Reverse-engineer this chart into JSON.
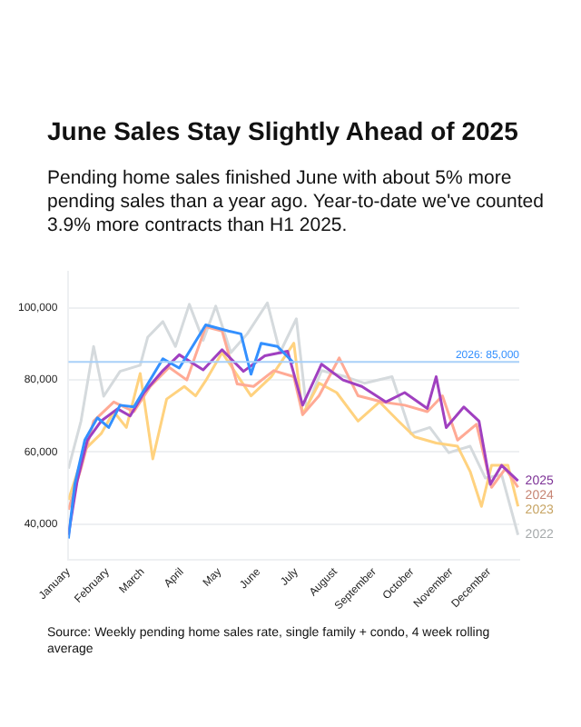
{
  "chart_data": {
    "type": "line",
    "title": "June Sales Stay Slightly Ahead of 2025",
    "subtitle": "Pending home sales finished June with about 5% more pending sales than a year ago. Year-to-date we've counted 3.9% more contracts than H1 2025.",
    "annotations": [
      "Source: Weekly pending home sales rate, single family + condo, 4 week rolling average"
    ],
    "xlim": [
      "--01-01",
      "--12-25"
    ],
    "xticks": [
      {
        "value": "--01-01",
        "label": "January"
      },
      {
        "value": "--02-01",
        "label": "February"
      },
      {
        "value": "--03-01",
        "label": "March"
      },
      {
        "value": "--04-01",
        "label": "April"
      },
      {
        "value": "--05-01",
        "label": "May"
      },
      {
        "value": "--06-01",
        "label": "June"
      },
      {
        "value": "--07-01",
        "label": "July"
      },
      {
        "value": "--08-01",
        "label": "August"
      },
      {
        "value": "--09-01",
        "label": "September"
      },
      {
        "value": "--10-01",
        "label": "October"
      },
      {
        "value": "--11-01",
        "label": "November"
      },
      {
        "value": "--12-01",
        "label": "December"
      }
    ],
    "ylim": [
      30000,
      110000
    ],
    "yticks": [
      {
        "value": 40000,
        "label": "40,000"
      },
      {
        "value": 60000,
        "label": "60,000"
      },
      {
        "value": 80000,
        "label": "80,000"
      },
      {
        "value": 100000,
        "label": "100,000"
      }
    ],
    "grid": "y",
    "line_style": "solid",
    "ref_lines": [
      {
        "axis": "y",
        "value": 85000,
        "label": "2026: 85,000",
        "color": "#a8d0f8",
        "line_style": "solid"
      }
    ],
    "series": [
      {
        "name": "2022",
        "color": "#d5dadd",
        "x": [
          "--01-01",
          "--01-11",
          "--01-21",
          "--01-29",
          "--02-11",
          "--02-27",
          "--03-05",
          "--03-17",
          "--03-27",
          "--04-07",
          "--04-18",
          "--04-28",
          "--05-10",
          "--05-23",
          "--06-08",
          "--06-18",
          "--07-01",
          "--07-09",
          "--07-21",
          "--08-09",
          "--08-24",
          "--09-15",
          "--09-30",
          "--10-15",
          "--10-30",
          "--11-16",
          "--11-28",
          "--12-11",
          "--12-24"
        ],
        "values": [
          55400,
          68600,
          89300,
          75500,
          82400,
          84100,
          91900,
          96200,
          89300,
          101000,
          91000,
          100500,
          87600,
          92800,
          101400,
          87600,
          97000,
          72100,
          82600,
          80900,
          79100,
          80900,
          65100,
          66800,
          59800,
          61600,
          52800,
          53700,
          37000
        ]
      },
      {
        "name": "2023",
        "color": "#ffd27f",
        "x": [
          "--01-01",
          "--01-14",
          "--01-27",
          "--02-06",
          "--02-16",
          "--02-27",
          "--03-09",
          "--03-20",
          "--04-03",
          "--04-12",
          "--04-20",
          "--05-03",
          "--05-26",
          "--06-11",
          "--06-29",
          "--07-06",
          "--07-19",
          "--08-02",
          "--08-19",
          "--09-05",
          "--09-20",
          "--10-03",
          "--10-20",
          "--11-06",
          "--11-16",
          "--11-25",
          "--12-03",
          "--12-16",
          "--12-24"
        ],
        "values": [
          46700,
          60700,
          65100,
          71200,
          66800,
          81800,
          58100,
          74700,
          78200,
          75600,
          79800,
          87600,
          75600,
          80900,
          90200,
          70400,
          79100,
          76500,
          68600,
          73900,
          68600,
          64200,
          62500,
          61600,
          54600,
          44900,
          56300,
          56300,
          44900
        ]
      },
      {
        "name": "2024",
        "color": "#ffaa95",
        "x": [
          "--01-01",
          "--01-11",
          "--01-21",
          "--02-06",
          "--02-22",
          "--03-07",
          "--03-22",
          "--04-05",
          "--04-20",
          "--05-03",
          "--05-15",
          "--05-28",
          "--06-13",
          "--06-29",
          "--07-06",
          "--07-19",
          "--08-04",
          "--08-19",
          "--09-07",
          "--09-25",
          "--10-13",
          "--10-25",
          "--11-06",
          "--11-21",
          "--12-03",
          "--12-14",
          "--12-24"
        ],
        "values": [
          44000,
          55400,
          68600,
          73900,
          71200,
          78200,
          83500,
          80000,
          94800,
          93600,
          78900,
          78200,
          82600,
          80900,
          70400,
          75600,
          86100,
          75600,
          73900,
          73000,
          71200,
          75600,
          63300,
          67700,
          50200,
          55400,
          50200
        ]
      },
      {
        "name": "2025",
        "color": "#a040c0",
        "x": [
          "--01-01",
          "--01-08",
          "--01-16",
          "--01-27",
          "--02-09",
          "--02-19",
          "--03-02",
          "--03-17",
          "--03-30",
          "--04-18",
          "--05-03",
          "--05-20",
          "--06-06",
          "--06-24",
          "--07-06",
          "--07-21",
          "--08-07",
          "--08-22",
          "--09-10",
          "--09-25",
          "--10-13",
          "--10-20",
          "--10-28",
          "--11-11",
          "--11-23",
          "--12-02",
          "--12-11",
          "--12-24"
        ],
        "values": [
          37000,
          52000,
          63300,
          68600,
          72000,
          70000,
          76500,
          82600,
          87000,
          82800,
          88400,
          82400,
          86700,
          88000,
          73000,
          84400,
          80000,
          78200,
          73900,
          76500,
          72100,
          80900,
          66800,
          72500,
          68600,
          51000,
          56300,
          52000
        ]
      },
      {
        "color": "#3390ff",
        "x": [
          "--01-01",
          "--01-06",
          "--01-14",
          "--01-24",
          "--02-02",
          "--02-11",
          "--02-22",
          "--03-17",
          "--03-30",
          "--04-20",
          "--05-08",
          "--05-18",
          "--05-26",
          "--06-03",
          "--06-16",
          "--06-29"
        ],
        "values": [
          36000,
          51000,
          63300,
          69500,
          66800,
          73000,
          72500,
          85900,
          83300,
          95300,
          93600,
          92800,
          81600,
          90200,
          89300,
          84700
        ]
      }
    ]
  }
}
